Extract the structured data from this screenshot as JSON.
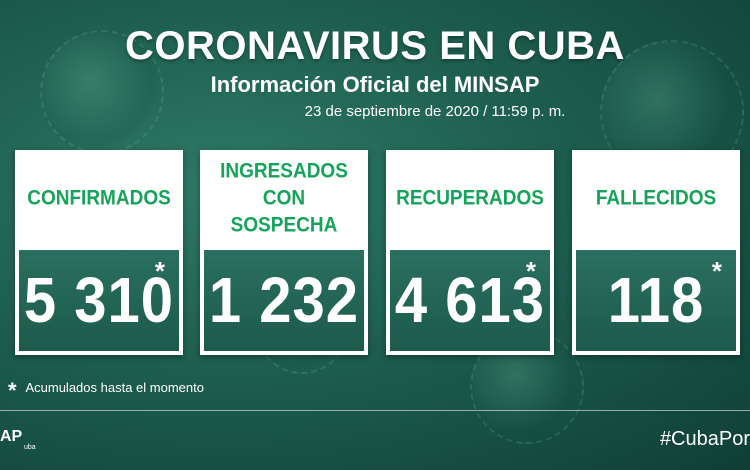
{
  "header": {
    "title": "CORONAVIRUS EN CUBA",
    "subtitle": "Información Oficial del MINSAP",
    "date": "23 de septiembre de 2020 / 11:59 p. m."
  },
  "cards": [
    {
      "label": "CONFIRMADOS",
      "value": "5 310",
      "asterisk": "*"
    },
    {
      "label": "INGRESADOS CON SOSPECHA",
      "value": "1 232",
      "asterisk": ""
    },
    {
      "label": "RECUPERADOS",
      "value": "4 613",
      "asterisk": "*"
    },
    {
      "label": "FALLECIDOS",
      "value": "118",
      "asterisk": "*"
    }
  ],
  "note": {
    "star": "*",
    "text": "Acumulados hasta el momento"
  },
  "footer": {
    "logo": "AP",
    "logo_sub": "uba",
    "hashtag": "#CubaPor"
  },
  "colors": {
    "label_green": "#16a35a",
    "value_bg": "#1f5e50",
    "background": "#1d5e4f"
  }
}
